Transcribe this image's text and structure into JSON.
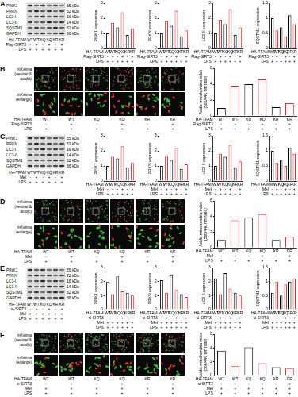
{
  "chart_data": [
    {
      "panel": "A",
      "type": "bar",
      "y_label": "PINK1 expression",
      "values": [
        1.0,
        1.7,
        1.4,
        2.4,
        0.9,
        1.3
      ],
      "colors": [
        "#000000",
        "#e8262a",
        "#000000",
        "#e8262a",
        "#000000",
        "#e8262a"
      ],
      "ylim": [
        0,
        3
      ],
      "yticks": [
        0,
        1,
        2,
        3
      ],
      "grid": false
    },
    {
      "panel": "A",
      "type": "bar",
      "y_label": "PRKN expression",
      "values": [
        1.0,
        1.8,
        1.5,
        2.5,
        0.8,
        1.2
      ],
      "colors": [
        "#000000",
        "#e8262a",
        "#000000",
        "#e8262a",
        "#000000",
        "#e8262a"
      ],
      "ylim": [
        0,
        3
      ],
      "yticks": [
        0,
        1,
        2,
        3
      ],
      "grid": false
    },
    {
      "panel": "A",
      "type": "bar",
      "y_label": "LC3-II expression",
      "values": [
        1.0,
        1.9,
        1.6,
        2.6,
        0.9,
        1.4
      ],
      "colors": [
        "#000000",
        "#e8262a",
        "#000000",
        "#e8262a",
        "#000000",
        "#e8262a"
      ],
      "ylim": [
        0,
        3
      ],
      "yticks": [
        0,
        1,
        2,
        3
      ],
      "grid": false
    },
    {
      "panel": "A",
      "type": "bar",
      "y_label": "SQSTM1 expression",
      "values": [
        1.0,
        0.6,
        0.7,
        0.4,
        1.1,
        0.8
      ],
      "colors": [
        "#000000",
        "#e8262a",
        "#000000",
        "#e8262a",
        "#000000",
        "#e8262a"
      ],
      "ylim": [
        0,
        1.5
      ],
      "yticks": [
        0,
        0.5,
        1,
        1.5
      ],
      "grid": false
    },
    {
      "panel": "B",
      "type": "bar",
      "y_label": [
        "Acidic mitochondria index",
        "(586/440 nm ratio)"
      ],
      "values": [
        1.0,
        3.8,
        4.0,
        4.6,
        1.1,
        1.6
      ],
      "colors": [
        "#000000",
        "#e8262a",
        "#000000",
        "#e8262a",
        "#000000",
        "#e8262a"
      ],
      "ylim": [
        0,
        6
      ],
      "yticks": [
        0,
        2,
        4,
        6
      ],
      "grid": false
    },
    {
      "panel": "C",
      "type": "bar",
      "y_label": "PINK1 expression",
      "values": [
        1.0,
        1.6,
        1.5,
        2.3,
        0.9,
        1.2
      ],
      "colors": [
        "#000000",
        "#e8262a",
        "#000000",
        "#e8262a",
        "#000000",
        "#e8262a"
      ],
      "ylim": [
        0,
        3
      ],
      "yticks": [
        0,
        1,
        2,
        3
      ],
      "grid": false
    },
    {
      "panel": "C",
      "type": "bar",
      "y_label": "PRKN expression",
      "values": [
        1.0,
        1.7,
        1.4,
        2.2,
        0.8,
        1.1
      ],
      "colors": [
        "#000000",
        "#e8262a",
        "#000000",
        "#e8262a",
        "#000000",
        "#e8262a"
      ],
      "ylim": [
        0,
        3
      ],
      "yticks": [
        0,
        1,
        2,
        3
      ],
      "grid": false
    },
    {
      "panel": "C",
      "type": "bar",
      "y_label": "LC3-II expression",
      "values": [
        1.0,
        1.8,
        1.6,
        2.4,
        0.9,
        1.3
      ],
      "colors": [
        "#000000",
        "#e8262a",
        "#000000",
        "#e8262a",
        "#000000",
        "#e8262a"
      ],
      "ylim": [
        0,
        3
      ],
      "yticks": [
        0,
        1,
        2,
        3
      ],
      "grid": false
    },
    {
      "panel": "C",
      "type": "bar",
      "y_label": "SQSTM1 expression",
      "values": [
        1.0,
        0.6,
        0.7,
        0.5,
        1.1,
        0.9
      ],
      "colors": [
        "#000000",
        "#e8262a",
        "#000000",
        "#e8262a",
        "#000000",
        "#e8262a"
      ],
      "ylim": [
        0,
        1.5
      ],
      "yticks": [
        0,
        0.5,
        1,
        1.5
      ],
      "grid": false
    },
    {
      "panel": "D",
      "type": "bar",
      "y_label": [
        "Acidic mitochondria index",
        "(586/440 nm ratio)"
      ],
      "values": [
        1.0,
        3.5,
        3.9,
        4.3,
        1.0,
        1.4
      ],
      "colors": [
        "#000000",
        "#e8262a",
        "#000000",
        "#e8262a",
        "#000000",
        "#e8262a"
      ],
      "ylim": [
        0,
        6
      ],
      "yticks": [
        0,
        2,
        4,
        6
      ],
      "grid": false
    },
    {
      "panel": "E",
      "type": "bar",
      "y_label": "PINK1 expression",
      "values": [
        2.0,
        1.1,
        2.4,
        1.3,
        1.2,
        1.0
      ],
      "colors": [
        "#000000",
        "#e8262a",
        "#000000",
        "#e8262a",
        "#000000",
        "#e8262a"
      ],
      "ylim": [
        0,
        3
      ],
      "yticks": [
        0,
        1,
        2,
        3
      ],
      "grid": false
    },
    {
      "panel": "E",
      "type": "bar",
      "y_label": "PRKN expression",
      "values": [
        2.1,
        1.2,
        2.5,
        1.4,
        1.1,
        0.9
      ],
      "colors": [
        "#000000",
        "#e8262a",
        "#000000",
        "#e8262a",
        "#000000",
        "#e8262a"
      ],
      "ylim": [
        0,
        3
      ],
      "yticks": [
        0,
        1,
        2,
        3
      ],
      "grid": false
    },
    {
      "panel": "E",
      "type": "bar",
      "y_label": "LC3-II expression",
      "values": [
        2.2,
        1.1,
        2.6,
        1.5,
        1.2,
        1.0
      ],
      "colors": [
        "#000000",
        "#e8262a",
        "#000000",
        "#e8262a",
        "#000000",
        "#e8262a"
      ],
      "ylim": [
        0,
        3
      ],
      "yticks": [
        0,
        1,
        2,
        3
      ],
      "grid": false
    },
    {
      "panel": "E",
      "type": "bar",
      "y_label": "SQSTM1 expression",
      "values": [
        0.6,
        1.0,
        0.5,
        0.9,
        1.0,
        1.1
      ],
      "colors": [
        "#000000",
        "#e8262a",
        "#000000",
        "#e8262a",
        "#000000",
        "#e8262a"
      ],
      "ylim": [
        0,
        1.5
      ],
      "yticks": [
        0,
        0.5,
        1,
        1.5
      ],
      "grid": false
    },
    {
      "panel": "F",
      "type": "bar",
      "y_label": [
        "Acidic mitochondria index",
        "(586/440 nm ratio)"
      ],
      "values": [
        3.6,
        1.4,
        4.1,
        1.8,
        1.2,
        1.0
      ],
      "colors": [
        "#000000",
        "#e8262a",
        "#000000",
        "#e8262a",
        "#000000",
        "#e8262a"
      ],
      "ylim": [
        0,
        6
      ],
      "yticks": [
        0,
        2,
        4,
        6
      ],
      "grid": false
    }
  ],
  "panels": [
    {
      "label": "A",
      "bands": [
        {
          "name": "PINK1",
          "size": "55 kDa"
        },
        {
          "name": "PRKN",
          "size": "52 kDa"
        },
        {
          "name": "LC3-I",
          "size": "16 kDa"
        },
        {
          "name": "LC3-II",
          "size": "14 kDa"
        },
        {
          "name": "SQSTM1",
          "size": "62 kDa"
        },
        {
          "name": "GAPDH",
          "size": "36 kDa"
        }
      ],
      "conditions": [
        {
          "label": "HA-TFAM",
          "values": [
            "WT",
            "WT",
            "KQ",
            "KQ",
            "KR",
            "KR"
          ]
        },
        {
          "label": "Flag-SIRT3",
          "values": [
            "-",
            "+",
            "-",
            "+",
            "-",
            "+"
          ]
        },
        {
          "label": "LPS",
          "values": [
            "+",
            "+",
            "+",
            "+",
            "+",
            "+"
          ]
        }
      ]
    },
    {
      "label": "B",
      "image_labels": [
        "mKeima (neutral & acidic)",
        "mKeima (enlarge)"
      ],
      "conditions": [
        {
          "label": "HA-TFAM",
          "values": [
            "WT",
            "WT",
            "KQ",
            "KQ",
            "KR",
            "KR"
          ]
        },
        {
          "label": "Flag-SIRT3",
          "values": [
            "-",
            "+",
            "-",
            "+",
            "-",
            "+"
          ]
        },
        {
          "label": "LPS",
          "values": [
            "+",
            "+",
            "+",
            "+",
            "+",
            "+"
          ]
        }
      ]
    },
    {
      "label": "C",
      "bands": [
        {
          "name": "PINK1",
          "size": "55 kDa"
        },
        {
          "name": "PRKN",
          "size": "52 kDa"
        },
        {
          "name": "LC3-I",
          "size": "16 kDa"
        },
        {
          "name": "LC3-II",
          "size": "14 kDa"
        },
        {
          "name": "SQSTM1",
          "size": "62 kDa"
        },
        {
          "name": "GAPDH",
          "size": "36 kDa"
        }
      ],
      "conditions": [
        {
          "label": "HA-TFAM",
          "values": [
            "WT",
            "WT",
            "KQ",
            "KQ",
            "KR",
            "KR"
          ]
        },
        {
          "label": "Mel",
          "values": [
            "-",
            "+",
            "-",
            "+",
            "-",
            "+"
          ]
        },
        {
          "label": "LPS",
          "values": [
            "+",
            "+",
            "+",
            "+",
            "+",
            "+"
          ]
        }
      ]
    },
    {
      "label": "D",
      "image_labels": [
        "mKeima (neutral & acidic)",
        "mKeima (enlarge)"
      ],
      "conditions": [
        {
          "label": "HA-TFAM",
          "values": [
            "WT",
            "WT",
            "KQ",
            "KQ",
            "KR",
            "KR"
          ]
        },
        {
          "label": "Mel",
          "values": [
            "-",
            "+",
            "-",
            "+",
            "-",
            "+"
          ]
        },
        {
          "label": "LPS",
          "values": [
            "+",
            "+",
            "+",
            "+",
            "+",
            "+"
          ]
        }
      ]
    },
    {
      "label": "E",
      "bands": [
        {
          "name": "PINK1",
          "size": "55 kDa"
        },
        {
          "name": "PRKN",
          "size": "52 kDa"
        },
        {
          "name": "LC3-I",
          "size": "16 kDa"
        },
        {
          "name": "LC3-II",
          "size": "14 kDa"
        },
        {
          "name": "SQSTM1",
          "size": "62 kDa"
        },
        {
          "name": "GAPDH",
          "size": "36 kDa"
        }
      ],
      "conditions": [
        {
          "label": "HA-TFAM",
          "values": [
            "WT",
            "WT",
            "KQ",
            "KQ",
            "KR",
            "KR"
          ]
        },
        {
          "label": "si-SIRT3",
          "values": [
            "-",
            "+",
            "-",
            "+",
            "-",
            "+"
          ]
        },
        {
          "label": "Mel",
          "values": [
            "+",
            "+",
            "+",
            "+",
            "+",
            "+"
          ]
        },
        {
          "label": "LPS",
          "values": [
            "+",
            "+",
            "+",
            "+",
            "+",
            "+"
          ]
        }
      ]
    },
    {
      "label": "F",
      "image_labels": [
        "mKeima (neutral & acidic)",
        "mKeima (enlarge)"
      ],
      "conditions": [
        {
          "label": "HA-TFAM",
          "values": [
            "WT",
            "WT",
            "KQ",
            "KQ",
            "KR",
            "KR"
          ]
        },
        {
          "label": "si-SIRT3",
          "values": [
            "-",
            "+",
            "-",
            "+",
            "-",
            "+"
          ]
        },
        {
          "label": "Mel",
          "values": [
            "+",
            "+",
            "+",
            "+",
            "+",
            "+"
          ]
        },
        {
          "label": "LPS",
          "values": [
            "+",
            "+",
            "+",
            "+",
            "+",
            "+"
          ]
        }
      ]
    }
  ]
}
